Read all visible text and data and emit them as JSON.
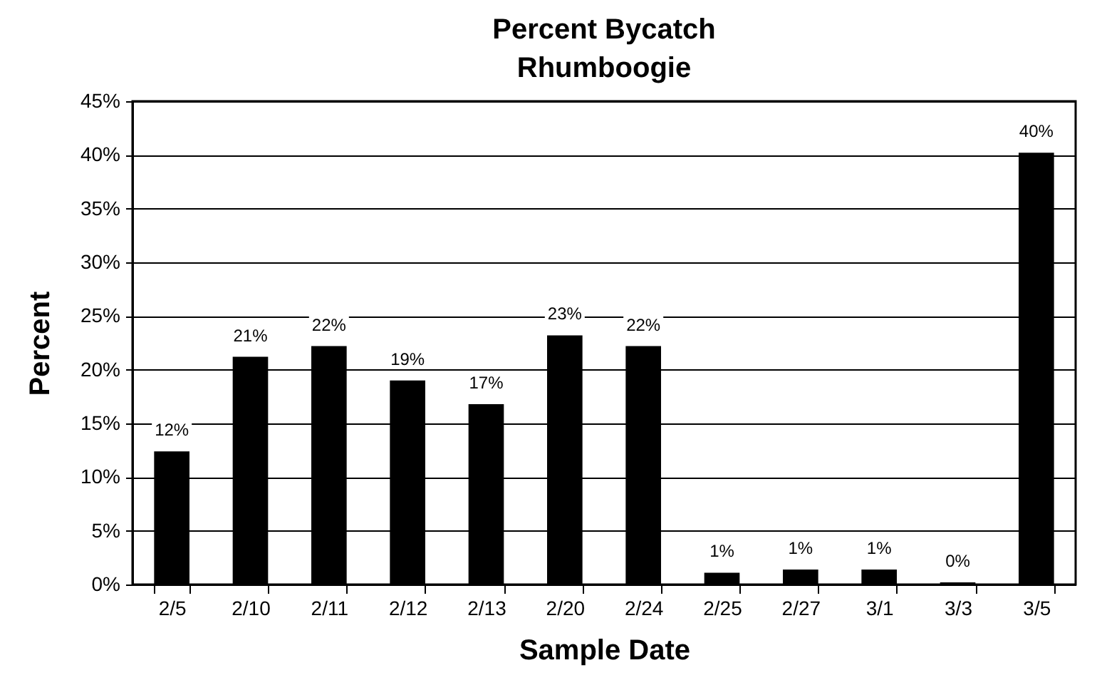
{
  "chart_data": {
    "type": "bar",
    "title": "Percent Bycatch",
    "subtitle": "Rhumboogie",
    "xlabel": "Sample Date",
    "ylabel": "Percent",
    "categories": [
      "2/5",
      "2/10",
      "2/11",
      "2/12",
      "2/13",
      "2/20",
      "2/24",
      "2/25",
      "2/27",
      "3/1",
      "3/3",
      "3/5"
    ],
    "values": [
      12.4,
      21.2,
      22.2,
      19.0,
      16.8,
      23.2,
      22.2,
      1.1,
      1.4,
      1.4,
      0.2,
      40.2
    ],
    "value_labels": [
      "12%",
      "21%",
      "22%",
      "19%",
      "17%",
      "23%",
      "22%",
      "1%",
      "1%",
      "1%",
      "0%",
      "40%"
    ],
    "color": "#000000",
    "ylim": [
      0,
      45
    ],
    "yticks": [
      {
        "value": 0,
        "label": "0%"
      },
      {
        "value": 5,
        "label": "5%"
      },
      {
        "value": 10,
        "label": "10%"
      },
      {
        "value": 15,
        "label": "15%"
      },
      {
        "value": 20,
        "label": "20%"
      },
      {
        "value": 25,
        "label": "25%"
      },
      {
        "value": 30,
        "label": "30%"
      },
      {
        "value": 35,
        "label": "35%"
      },
      {
        "value": 40,
        "label": "40%"
      },
      {
        "value": 45,
        "label": "45%"
      }
    ],
    "grid": "y"
  }
}
